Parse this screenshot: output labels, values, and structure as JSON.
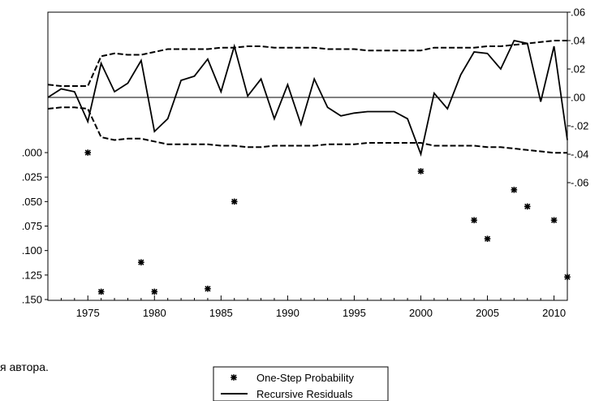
{
  "chart_data": {
    "type": "line",
    "x_range": [
      1972,
      2011
    ],
    "x_ticks": [
      1975,
      1980,
      1985,
      1990,
      1995,
      2000,
      2005,
      2010
    ],
    "right_axis": {
      "ylim": [
        -0.06,
        0.06
      ],
      "tick_values": [
        0.06,
        0.04,
        0.02,
        0.0,
        -0.02,
        -0.04,
        -0.06
      ],
      "tick_labels": [
        ".06",
        ".04",
        ".02",
        ".00",
        "-.02",
        "-.04",
        "-.06"
      ]
    },
    "left_axis": {
      "ylim": [
        0.0,
        0.15
      ],
      "inverted": true,
      "tick_values": [
        0.0,
        0.025,
        0.05,
        0.075,
        0.1,
        0.125,
        0.15
      ],
      "tick_labels": [
        ".000",
        ".025",
        ".050",
        ".075",
        ".100",
        ".125",
        ".150"
      ]
    },
    "series": [
      {
        "name": "Recursive Residuals",
        "style": "solid",
        "axis": "right",
        "x": [
          1972,
          1973,
          1974,
          1975,
          1976,
          1977,
          1978,
          1979,
          1980,
          1981,
          1982,
          1983,
          1984,
          1985,
          1986,
          1987,
          1988,
          1989,
          1990,
          1991,
          1992,
          1993,
          1994,
          1995,
          1996,
          1997,
          1998,
          1999,
          2000,
          2001,
          2002,
          2003,
          2004,
          2005,
          2006,
          2007,
          2008,
          2009,
          2010,
          2011
        ],
        "y": [
          0.0,
          0.006,
          0.004,
          -0.017,
          0.024,
          0.004,
          0.01,
          0.026,
          -0.024,
          -0.015,
          0.012,
          0.015,
          0.027,
          0.004,
          0.036,
          0.001,
          0.013,
          -0.015,
          0.009,
          -0.019,
          0.013,
          -0.007,
          -0.013,
          -0.011,
          -0.01,
          -0.01,
          -0.01,
          -0.015,
          -0.04,
          0.003,
          -0.008,
          0.016,
          0.032,
          0.031,
          0.02,
          0.04,
          0.038,
          -0.003,
          0.036,
          -0.03
        ]
      },
      {
        "name": "Upper band",
        "style": "dashed",
        "axis": "right",
        "x": [
          1972,
          1973,
          1974,
          1975,
          1976,
          1977,
          1978,
          1979,
          1980,
          1981,
          1982,
          1983,
          1984,
          1985,
          1986,
          1987,
          1988,
          1989,
          1990,
          1991,
          1992,
          1993,
          1994,
          1995,
          1996,
          1997,
          1998,
          1999,
          2000,
          2001,
          2002,
          2003,
          2004,
          2005,
          2006,
          2007,
          2008,
          2009,
          2010,
          2011
        ],
        "y": [
          0.009,
          0.008,
          0.008,
          0.008,
          0.029,
          0.031,
          0.03,
          0.03,
          0.032,
          0.034,
          0.034,
          0.034,
          0.034,
          0.035,
          0.035,
          0.036,
          0.036,
          0.035,
          0.035,
          0.035,
          0.035,
          0.034,
          0.034,
          0.034,
          0.033,
          0.033,
          0.033,
          0.033,
          0.033,
          0.035,
          0.035,
          0.035,
          0.035,
          0.036,
          0.036,
          0.037,
          0.038,
          0.039,
          0.04,
          0.04
        ]
      },
      {
        "name": "Lower band",
        "style": "dashed",
        "axis": "right",
        "x": [
          1972,
          1973,
          1974,
          1975,
          1976,
          1977,
          1978,
          1979,
          1980,
          1981,
          1982,
          1983,
          1984,
          1985,
          1986,
          1987,
          1988,
          1989,
          1990,
          1991,
          1992,
          1993,
          1994,
          1995,
          1996,
          1997,
          1998,
          1999,
          2000,
          2001,
          2002,
          2003,
          2004,
          2005,
          2006,
          2007,
          2008,
          2009,
          2010,
          2011
        ],
        "y": [
          -0.008,
          -0.007,
          -0.007,
          -0.008,
          -0.028,
          -0.03,
          -0.029,
          -0.029,
          -0.031,
          -0.033,
          -0.033,
          -0.033,
          -0.033,
          -0.034,
          -0.034,
          -0.035,
          -0.035,
          -0.034,
          -0.034,
          -0.034,
          -0.034,
          -0.033,
          -0.033,
          -0.033,
          -0.032,
          -0.032,
          -0.032,
          -0.032,
          -0.032,
          -0.034,
          -0.034,
          -0.034,
          -0.034,
          -0.035,
          -0.035,
          -0.036,
          -0.037,
          -0.038,
          -0.039,
          -0.039
        ]
      },
      {
        "name": "One-Step Probability",
        "style": "markers",
        "axis": "left",
        "x": [
          1975,
          1976,
          1979,
          1980,
          1984,
          1986,
          2000,
          2004,
          2005,
          2007,
          2008,
          2010,
          2011
        ],
        "y": [
          0.0,
          0.142,
          0.112,
          0.142,
          0.139,
          0.05,
          0.019,
          0.069,
          0.088,
          0.038,
          0.055,
          0.069,
          0.127
        ]
      }
    ],
    "legend": {
      "placement": "bottom-center",
      "entries": [
        "One-Step Probability",
        "Recursive Residuals"
      ]
    }
  },
  "footnote": "я автора."
}
